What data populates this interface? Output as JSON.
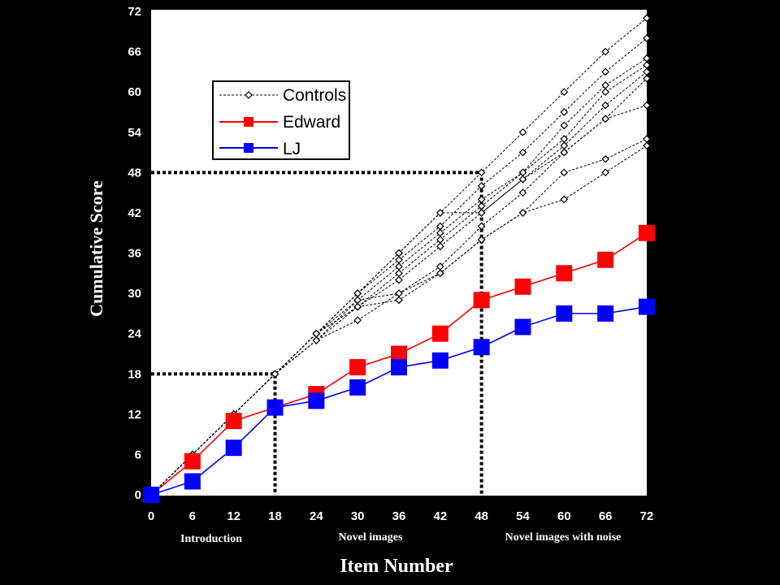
{
  "chart_data": {
    "type": "line",
    "xlabel": "Item Number",
    "ylabel": "Cumulative Score",
    "x_ticks": [
      "0",
      "6",
      "12",
      "18",
      "24",
      "30",
      "36",
      "42",
      "48",
      "54",
      "60",
      "66",
      "72"
    ],
    "y_ticks": [
      "0",
      "6",
      "12",
      "18",
      "24",
      "30",
      "36",
      "42",
      "48",
      "54",
      "60",
      "66",
      "72"
    ],
    "xlim": [
      0,
      72
    ],
    "ylim": [
      0,
      72
    ],
    "grid": false,
    "legend_position": "top-left",
    "legend": [
      "Controls",
      "Edward",
      "LJ"
    ],
    "section_labels": [
      "Introduction",
      "Novel images",
      "Novel images with noise"
    ],
    "colors": {
      "Controls": "#000000",
      "Edward": "#ff0000",
      "LJ": "#0000ff",
      "background": "#000000",
      "plot_area": "#ffffff"
    },
    "x": [
      0,
      6,
      12,
      18,
      24,
      30,
      36,
      42,
      48,
      54,
      60,
      66,
      72
    ],
    "series": [
      {
        "name": "Edward",
        "values": [
          0,
          5,
          11,
          13,
          15,
          19,
          21,
          24,
          29,
          31,
          33,
          35,
          39
        ]
      },
      {
        "name": "LJ",
        "values": [
          0,
          2,
          7,
          13,
          14,
          16,
          19,
          20,
          22,
          25,
          27,
          27,
          28
        ]
      }
    ],
    "controls": [
      [
        0,
        6,
        12,
        18,
        24,
        30,
        36,
        42,
        48,
        54,
        60,
        66,
        71
      ],
      [
        0,
        6,
        12,
        18,
        24,
        30,
        35,
        40,
        46,
        51,
        57,
        63,
        68
      ],
      [
        0,
        6,
        12,
        18,
        24,
        29,
        34,
        39,
        44,
        48,
        55,
        61,
        65
      ],
      [
        0,
        6,
        12,
        18,
        24,
        28,
        33,
        38,
        43,
        48,
        53,
        60,
        64
      ],
      [
        0,
        6,
        12,
        18,
        23,
        28,
        32,
        37,
        42,
        47,
        52,
        58,
        63
      ],
      [
        0,
        6,
        12,
        18,
        24,
        30,
        36,
        42,
        42,
        47,
        51,
        56,
        62
      ],
      [
        0,
        6,
        12,
        18,
        23,
        29,
        30,
        34,
        40,
        45,
        51,
        56,
        58
      ],
      [
        0,
        6,
        12,
        18,
        23,
        26,
        30,
        33,
        38,
        42,
        48,
        50,
        53
      ],
      [
        0,
        6,
        12,
        18,
        24,
        28,
        29,
        33,
        38,
        42,
        44,
        48,
        52
      ]
    ],
    "reference_lines": [
      {
        "x": 18,
        "y": 18
      },
      {
        "x": 48,
        "y": 48
      }
    ]
  }
}
